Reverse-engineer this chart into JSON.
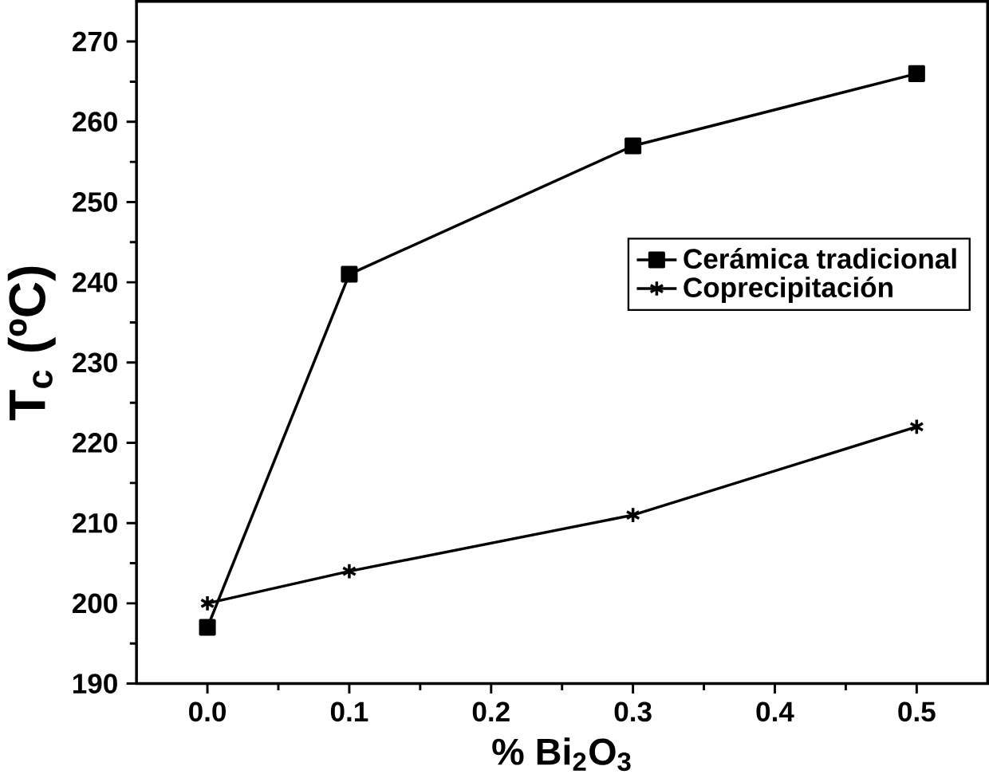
{
  "chart_data": {
    "type": "line",
    "xlabel": "% Bi$_{2}$O$_{3}$",
    "ylabel": "T$_{c}$ (ºC)",
    "x": [
      0.0,
      0.1,
      0.3,
      0.5
    ],
    "series": [
      {
        "name": "Cerámica tradicional",
        "color": "#000000",
        "marker": "square",
        "values": [
          197,
          241,
          257,
          266
        ]
      },
      {
        "name": "Coprecipitación",
        "color": "#000000",
        "marker": "cross",
        "values": [
          200,
          204,
          211,
          222
        ]
      }
    ],
    "xlim": [
      -0.05,
      0.55
    ],
    "ylim": [
      190,
      275
    ],
    "xticks": [
      {
        "value": 0.0,
        "label": "0.0"
      },
      {
        "value": 0.1,
        "label": "0.1"
      },
      {
        "value": 0.2,
        "label": "0.2"
      },
      {
        "value": 0.3,
        "label": "0.3"
      },
      {
        "value": 0.4,
        "label": "0.4"
      },
      {
        "value": 0.5,
        "label": "0.5"
      }
    ],
    "yticks": [
      190,
      200,
      210,
      220,
      230,
      240,
      250,
      260,
      270
    ],
    "legend": "right",
    "grid": false,
    "line_style": "solid"
  }
}
